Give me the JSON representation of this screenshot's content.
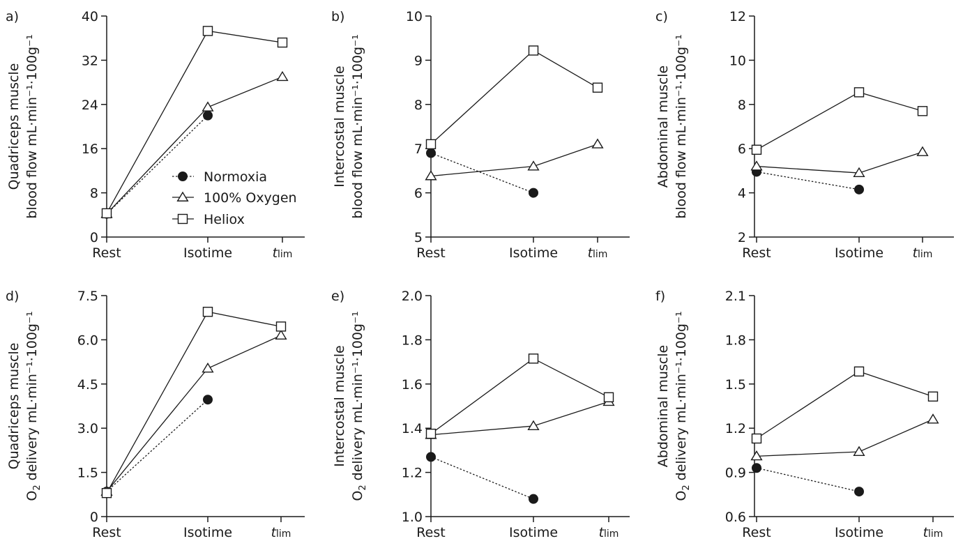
{
  "chart_data": [
    {
      "id": "a",
      "panel_label": "a)",
      "type": "line",
      "ylabel_line1": "Quadriceps muscle",
      "ylabel_line2": "blood flow mL·min⁻¹·100g⁻¹",
      "categories": [
        "Rest",
        "Isotime",
        "tlim"
      ],
      "ylim": [
        0,
        40
      ],
      "yticks": [
        0,
        8,
        16,
        24,
        32,
        40
      ],
      "series": [
        {
          "name": "Normoxia",
          "values": [
            4.2,
            22.0,
            null
          ]
        },
        {
          "name": "100% Oxygen",
          "values": [
            4.2,
            23.5,
            29.0
          ]
        },
        {
          "name": "Heliox",
          "values": [
            4.3,
            37.3,
            35.2
          ]
        }
      ]
    },
    {
      "id": "b",
      "panel_label": "b)",
      "type": "line",
      "ylabel_line1": "Intercostal muscle",
      "ylabel_line2": "blood flow mL·min⁻¹·100g⁻¹",
      "categories": [
        "Rest",
        "Isotime",
        "tlim"
      ],
      "ylim": [
        5,
        10
      ],
      "yticks": [
        5,
        6,
        7,
        8,
        9,
        10
      ],
      "series": [
        {
          "name": "Normoxia",
          "values": [
            6.9,
            6.0,
            null
          ]
        },
        {
          "name": "100% Oxygen",
          "values": [
            6.38,
            6.6,
            7.1
          ]
        },
        {
          "name": "Heliox",
          "values": [
            7.1,
            9.22,
            8.38
          ]
        }
      ]
    },
    {
      "id": "c",
      "panel_label": "c)",
      "type": "line",
      "ylabel_line1": "Abdominal muscle",
      "ylabel_line2": "blood flow mL·min⁻¹·100g⁻¹",
      "categories": [
        "Rest",
        "Isotime",
        "tlim"
      ],
      "ylim": [
        2,
        12
      ],
      "yticks": [
        2,
        4,
        6,
        8,
        10,
        12
      ],
      "series": [
        {
          "name": "Normoxia",
          "values": [
            4.95,
            4.15,
            null
          ]
        },
        {
          "name": "100% Oxygen",
          "values": [
            5.2,
            4.9,
            5.85
          ]
        },
        {
          "name": "Heliox",
          "values": [
            5.95,
            8.55,
            7.7
          ]
        }
      ]
    },
    {
      "id": "d",
      "panel_label": "d)",
      "type": "line",
      "ylabel_line1": "Quadriceps muscle",
      "ylabel_line2": "delivery mL·min⁻¹·100g⁻¹",
      "ylabel_prefix": "O",
      "ylabel_sub": "2",
      "categories": [
        "Rest",
        "Isotime",
        "tlim"
      ],
      "ylim": [
        0,
        7.5
      ],
      "yticks": [
        0,
        1.5,
        3.0,
        4.5,
        6.0,
        7.5
      ],
      "series": [
        {
          "name": "Normoxia",
          "values": [
            0.85,
            3.97,
            null
          ]
        },
        {
          "name": "100% Oxygen",
          "values": [
            0.85,
            5.03,
            6.15
          ]
        },
        {
          "name": "Heliox",
          "values": [
            0.8,
            6.95,
            6.45
          ]
        }
      ]
    },
    {
      "id": "e",
      "panel_label": "e)",
      "type": "line",
      "ylabel_line1": "Intercostal muscle",
      "ylabel_line2": "delivery mL·min⁻¹·100g⁻¹",
      "ylabel_prefix": "O",
      "ylabel_sub": "2",
      "categories": [
        "Rest",
        "Isotime",
        "tlim"
      ],
      "ylim": [
        1.0,
        2.0
      ],
      "yticks": [
        1.0,
        1.2,
        1.4,
        1.6,
        1.8,
        2.0
      ],
      "series": [
        {
          "name": "Normoxia",
          "values": [
            1.27,
            1.08,
            null
          ]
        },
        {
          "name": "100% Oxygen",
          "values": [
            1.37,
            1.41,
            1.52
          ]
        },
        {
          "name": "Heliox",
          "values": [
            1.375,
            1.715,
            1.54
          ]
        }
      ]
    },
    {
      "id": "f",
      "panel_label": "f)",
      "type": "line",
      "ylabel_line1": "Abdominal muscle",
      "ylabel_line2": "delivery mL·min⁻¹·100g⁻¹",
      "ylabel_prefix": "O",
      "ylabel_sub": "2",
      "categories": [
        "Rest",
        "Isotime",
        "tlim"
      ],
      "ylim": [
        0.6,
        2.1
      ],
      "yticks": [
        0.6,
        0.9,
        1.2,
        1.5,
        1.8,
        2.1
      ],
      "series": [
        {
          "name": "Normoxia",
          "values": [
            0.93,
            0.77,
            null
          ]
        },
        {
          "name": "100% Oxygen",
          "values": [
            1.01,
            1.04,
            1.26
          ]
        },
        {
          "name": "Heliox",
          "values": [
            1.13,
            1.585,
            1.415
          ]
        }
      ]
    }
  ],
  "legend": {
    "entries": [
      {
        "label": "Normoxia",
        "marker": "filled-circle",
        "line": "dotted"
      },
      {
        "label": "100% Oxygen",
        "marker": "open-triangle",
        "line": "solid"
      },
      {
        "label": "Heliox",
        "marker": "open-square",
        "line": "solid"
      }
    ]
  }
}
